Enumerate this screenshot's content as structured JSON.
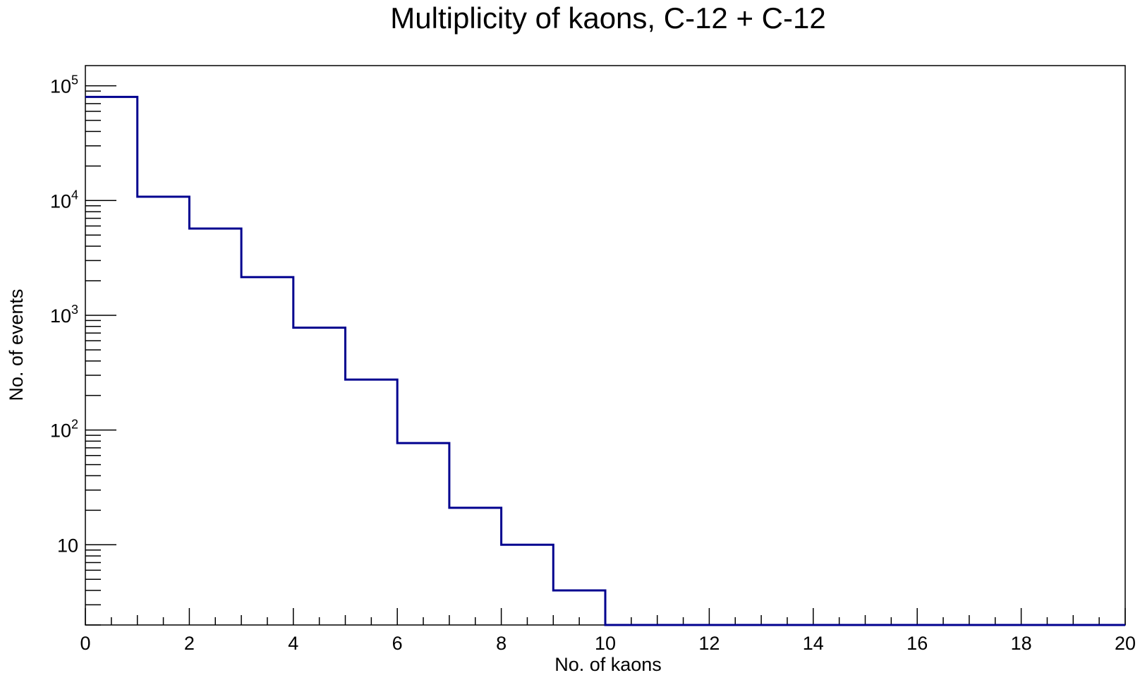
{
  "chart_data": {
    "type": "histogram",
    "title": "Multiplicity of kaons, C-12 + C-12",
    "xlabel": "No. of kaons",
    "ylabel": "No. of events",
    "xlim": [
      0,
      20
    ],
    "ylim": [
      2,
      150000
    ],
    "y_scale": "log",
    "grid": false,
    "legend": "none",
    "line_color": "#00008f",
    "bin_width": 1,
    "bins": [
      {
        "x_low": 0,
        "x_high": 1,
        "value": 80000
      },
      {
        "x_low": 1,
        "x_high": 2,
        "value": 10800
      },
      {
        "x_low": 2,
        "x_high": 3,
        "value": 5700
      },
      {
        "x_low": 3,
        "x_high": 4,
        "value": 2150
      },
      {
        "x_low": 4,
        "x_high": 5,
        "value": 780
      },
      {
        "x_low": 5,
        "x_high": 6,
        "value": 275
      },
      {
        "x_low": 6,
        "x_high": 7,
        "value": 77
      },
      {
        "x_low": 7,
        "x_high": 8,
        "value": 21
      },
      {
        "x_low": 8,
        "x_high": 9,
        "value": 10
      },
      {
        "x_low": 9,
        "x_high": 10,
        "value": 4
      },
      {
        "x_low": 10,
        "x_high": 20,
        "value": 0
      }
    ],
    "x_tick_values": [
      0,
      2,
      4,
      6,
      8,
      10,
      12,
      14,
      16,
      18,
      20
    ],
    "x_tick_labels": [
      "0",
      "2",
      "4",
      "6",
      "8",
      "10",
      "12",
      "14",
      "16",
      "18",
      "20"
    ],
    "y_ticks": [
      {
        "value": 10,
        "base": "10",
        "exp": ""
      },
      {
        "value": 100,
        "base": "10",
        "exp": "2"
      },
      {
        "value": 1000,
        "base": "10",
        "exp": "3"
      },
      {
        "value": 10000,
        "base": "10",
        "exp": "4"
      },
      {
        "value": 100000,
        "base": "10",
        "exp": "5"
      }
    ]
  }
}
